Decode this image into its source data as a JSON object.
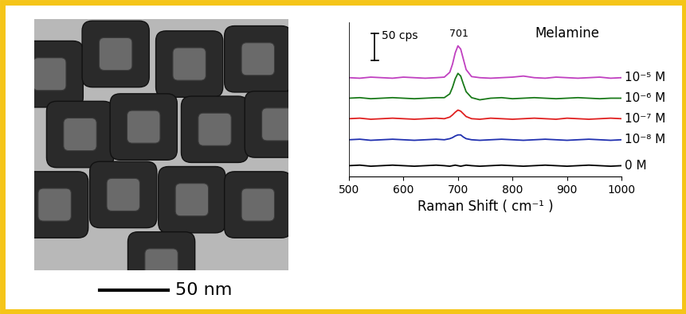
{
  "chart_data": {
    "type": "line",
    "title": "Melamine",
    "x_label": "Raman Shift ( cm⁻¹ )",
    "x": [
      500,
      520,
      540,
      560,
      580,
      600,
      620,
      640,
      660,
      675,
      685,
      690,
      695,
      700,
      705,
      710,
      715,
      725,
      740,
      760,
      780,
      800,
      820,
      840,
      860,
      880,
      900,
      920,
      940,
      960,
      980,
      1000
    ],
    "series": [
      {
        "name": "10⁻⁵ M",
        "color": "#c040c0",
        "values": [
          163,
          162,
          164,
          163,
          162,
          164,
          163,
          162,
          163,
          164,
          173,
          188,
          209,
          222,
          216,
          197,
          178,
          165,
          163,
          162,
          163,
          164,
          166,
          163,
          162,
          164,
          163,
          162,
          163,
          164,
          162,
          163
        ]
      },
      {
        "name": "10⁻⁶ M",
        "color": "#1a7a1a",
        "values": [
          125,
          126,
          124,
          125,
          126,
          125,
          124,
          125,
          126,
          126,
          133,
          145,
          161,
          171,
          166,
          151,
          137,
          126,
          122,
          125,
          126,
          124,
          125,
          126,
          125,
          124,
          125,
          126,
          125,
          124,
          125,
          125
        ]
      },
      {
        "name": "10⁻⁷ M",
        "color": "#e02020",
        "values": [
          87,
          88,
          86,
          87,
          88,
          87,
          86,
          87,
          88,
          87,
          90,
          94,
          99,
          103,
          101,
          96,
          91,
          87,
          86,
          88,
          87,
          86,
          87,
          88,
          87,
          86,
          88,
          87,
          86,
          87,
          88,
          87
        ]
      },
      {
        "name": "10⁻⁸ M",
        "color": "#2030b0",
        "values": [
          48,
          49,
          47,
          48,
          49,
          48,
          47,
          48,
          49,
          48,
          50,
          52,
          55,
          57,
          57,
          53,
          50,
          48,
          47,
          48,
          49,
          48,
          47,
          48,
          49,
          48,
          47,
          48,
          49,
          48,
          47,
          48
        ]
      },
      {
        "name": "0 M",
        "color": "#000000",
        "values": [
          0,
          1,
          -1,
          0,
          1,
          0,
          -1,
          0,
          1,
          0,
          -1,
          0,
          1,
          0,
          -1,
          0,
          1,
          0,
          -1,
          0,
          1,
          0,
          -1,
          0,
          1,
          0,
          -1,
          0,
          1,
          0,
          -1,
          0
        ]
      }
    ],
    "annotations": [
      {
        "text": "701",
        "x": 701
      }
    ],
    "scale_bar": {
      "label": "50 cps",
      "value": 50
    },
    "xlim": [
      500,
      1000
    ],
    "xticks": [
      500,
      600,
      700,
      800,
      900,
      1000
    ],
    "ylim": [
      -20,
      265
    ],
    "yticks": [],
    "tick_labels": "x",
    "grid": false
  },
  "image": {
    "scale_bar_label": "50 nm"
  }
}
